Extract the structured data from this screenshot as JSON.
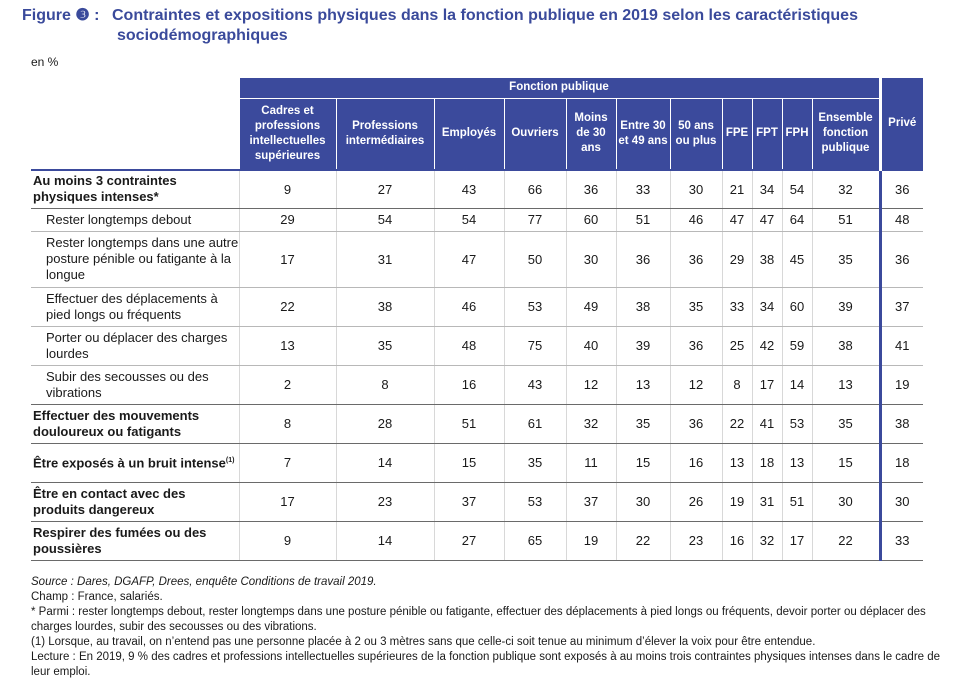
{
  "title": {
    "label": "Figure ❸ :",
    "line1": "Contraintes et expositions physiques dans la fonction publique en 2019 selon les caractéristiques",
    "line2": "sociodémographiques"
  },
  "unit": "en %",
  "header": {
    "group": "Fonction publique",
    "columns": [
      "Cadres et professions intellectuelles supérieures",
      "Professions intermédiaires",
      "Employés",
      "Ouvriers",
      "Moins de 30 ans",
      "Entre 30 et 49 ans",
      "50 ans ou plus",
      "FPE",
      "FPT",
      "FPH",
      "Ensemble fonction publique"
    ],
    "prive": "Privé"
  },
  "rows": [
    {
      "label": "Au moins 3 contraintes physiques intenses*",
      "values": [
        "9",
        "27",
        "43",
        "66",
        "36",
        "33",
        "30",
        "21",
        "34",
        "54",
        "32",
        "36"
      ]
    },
    {
      "label": "Rester longtemps debout",
      "values": [
        "29",
        "54",
        "54",
        "77",
        "60",
        "51",
        "46",
        "47",
        "47",
        "64",
        "51",
        "48"
      ]
    },
    {
      "label": "Rester longtemps dans une autre posture pénible ou fatigante à la longue",
      "values": [
        "17",
        "31",
        "47",
        "50",
        "30",
        "36",
        "36",
        "29",
        "38",
        "45",
        "35",
        "36"
      ]
    },
    {
      "label": "Effectuer des déplacements à pied longs ou fréquents",
      "values": [
        "22",
        "38",
        "46",
        "53",
        "49",
        "38",
        "35",
        "33",
        "34",
        "60",
        "39",
        "37"
      ]
    },
    {
      "label": "Porter ou déplacer des charges lourdes",
      "values": [
        "13",
        "35",
        "48",
        "75",
        "40",
        "39",
        "36",
        "25",
        "42",
        "59",
        "38",
        "41"
      ]
    },
    {
      "label": "Subir des secousses ou des vibrations",
      "values": [
        "2",
        "8",
        "16",
        "43",
        "12",
        "13",
        "12",
        "8",
        "17",
        "14",
        "13",
        "19"
      ]
    },
    {
      "label": "Effectuer des mouvements douloureux ou fatigants",
      "values": [
        "8",
        "28",
        "51",
        "61",
        "32",
        "35",
        "36",
        "22",
        "41",
        "53",
        "35",
        "38"
      ]
    },
    {
      "label": "Être exposés à un bruit intense",
      "sup": "(1)",
      "values": [
        "7",
        "14",
        "15",
        "35",
        "11",
        "15",
        "16",
        "13",
        "18",
        "13",
        "15",
        "18"
      ]
    },
    {
      "label": "Être en contact avec des produits dangereux",
      "values": [
        "17",
        "23",
        "37",
        "53",
        "37",
        "30",
        "26",
        "19",
        "31",
        "51",
        "30",
        "30"
      ]
    },
    {
      "label": "Respirer des fumées ou des poussières",
      "values": [
        "9",
        "14",
        "27",
        "65",
        "19",
        "22",
        "23",
        "16",
        "32",
        "17",
        "22",
        "33"
      ]
    }
  ],
  "notes": {
    "source": "Source : Dares, DGAFP, Drees, enquête Conditions de travail 2019.",
    "champ": "Champ : France, salariés.",
    "star": "* Parmi : rester longtemps debout, rester longtemps dans une posture pénible ou fatigante, effectuer des déplacements à pied longs ou fréquents, devoir porter ou déplacer des charges lourdes, subir des secousses ou des vibrations.",
    "note1": "(1) Lorsque, au travail, on n’entend pas une personne placée à 2 ou 3 mètres sans que celle-ci soit tenue au minimum d’élever la voix pour être entendue.",
    "lecture": "Lecture : En 2019, 9 % des cadres et professions intellectuelles supérieures de la fonction publique sont exposés à au moins trois contraintes physiques intenses dans le cadre de leur emploi."
  },
  "colors": {
    "header_bg": "#3b4a9c",
    "title": "#3a4a9b"
  }
}
